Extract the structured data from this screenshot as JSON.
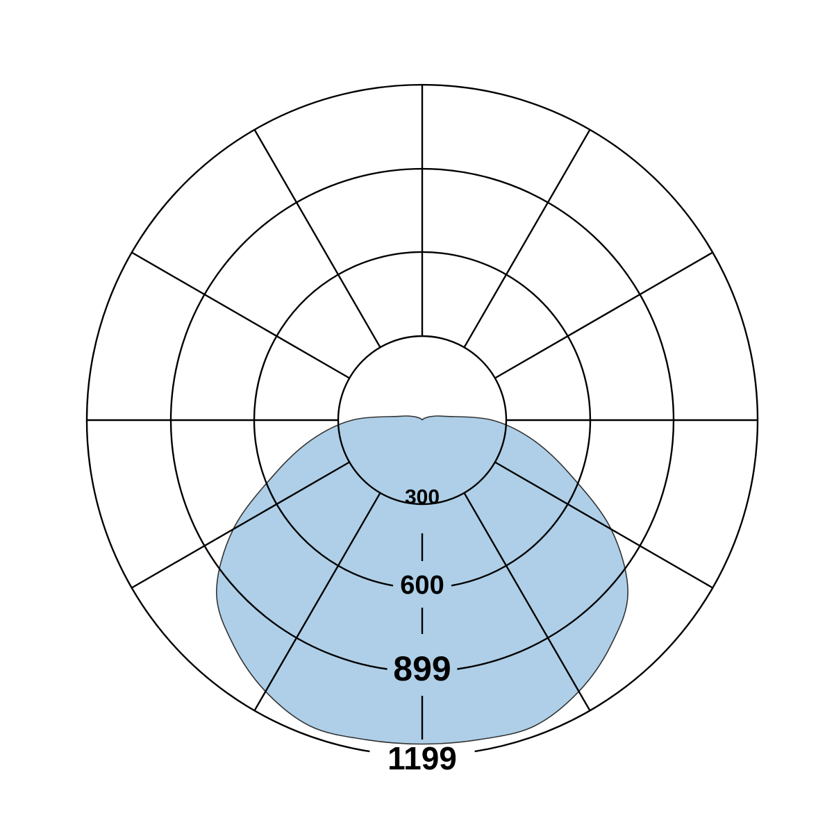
{
  "chart_data": {
    "type": "polar",
    "title": "",
    "rings": [
      300,
      600,
      899,
      1199
    ],
    "ring_labels": [
      "300",
      "600",
      "899",
      "1199"
    ],
    "angular_step_deg": 30,
    "grid": true,
    "fill_color": "#aecfe7",
    "stroke_color": "#333333",
    "series": [
      {
        "angles_deg": [
          0,
          10,
          20,
          30,
          40,
          50,
          60,
          70,
          80,
          90,
          100,
          110,
          120,
          130,
          140,
          150,
          160,
          170,
          180,
          190,
          200,
          210,
          220,
          230,
          240,
          250,
          260,
          270,
          280,
          290,
          300,
          310,
          320,
          330,
          340,
          350
        ],
        "values": [
          1158,
          1160,
          1165,
          1120,
          1050,
          960,
          780,
          560,
          400,
          250,
          80,
          40,
          20,
          10,
          5,
          3,
          2,
          1,
          1,
          1,
          2,
          3,
          5,
          10,
          20,
          40,
          80,
          250,
          400,
          560,
          780,
          960,
          1050,
          1120,
          1165,
          1160
        ]
      }
    ]
  }
}
